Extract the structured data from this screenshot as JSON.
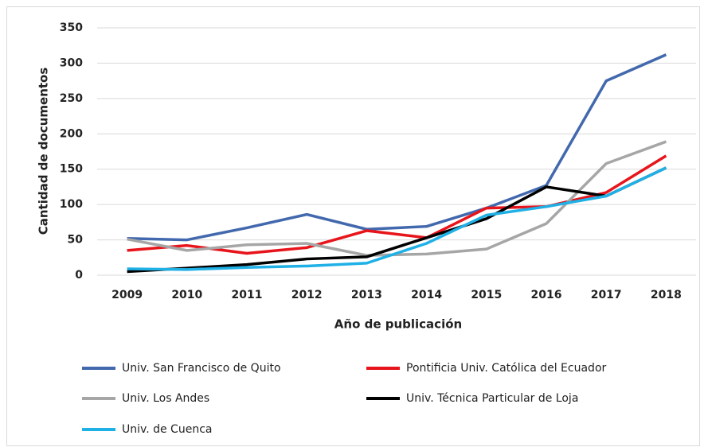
{
  "chart_data": {
    "type": "line",
    "xlabel": "Año de publicación",
    "ylabel": "Cantidad de documentos",
    "categories": [
      "2009",
      "2010",
      "2011",
      "2012",
      "2013",
      "2014",
      "2015",
      "2016",
      "2017",
      "2018"
    ],
    "series": [
      {
        "name": "Univ. San Francisco de Quito",
        "color": "#4268ad",
        "values": [
          52,
          50,
          67,
          86,
          65,
          69,
          95,
          127,
          275,
          312
        ]
      },
      {
        "name": "Pontificia Univ. Católica del Ecuador",
        "color": "#e8141b",
        "values": [
          35,
          42,
          31,
          39,
          63,
          53,
          95,
          97,
          117,
          169
        ]
      },
      {
        "name": "Univ. Los Andes",
        "color": "#a6a6a6",
        "values": [
          51,
          35,
          43,
          45,
          28,
          30,
          37,
          73,
          158,
          189
        ]
      },
      {
        "name": "Univ. Técnica Particular de Loja",
        "color": "#000000",
        "values": [
          5,
          10,
          15,
          23,
          26,
          53,
          80,
          125,
          112,
          152
        ]
      },
      {
        "name": "Univ. de Cuenca",
        "color": "#1fb0e6",
        "values": [
          9,
          8,
          11,
          13,
          17,
          45,
          85,
          97,
          112,
          152
        ]
      }
    ],
    "ylim": [
      0,
      350
    ],
    "yticks": [
      0,
      50,
      100,
      150,
      200,
      250,
      300,
      350
    ],
    "grid": true
  }
}
